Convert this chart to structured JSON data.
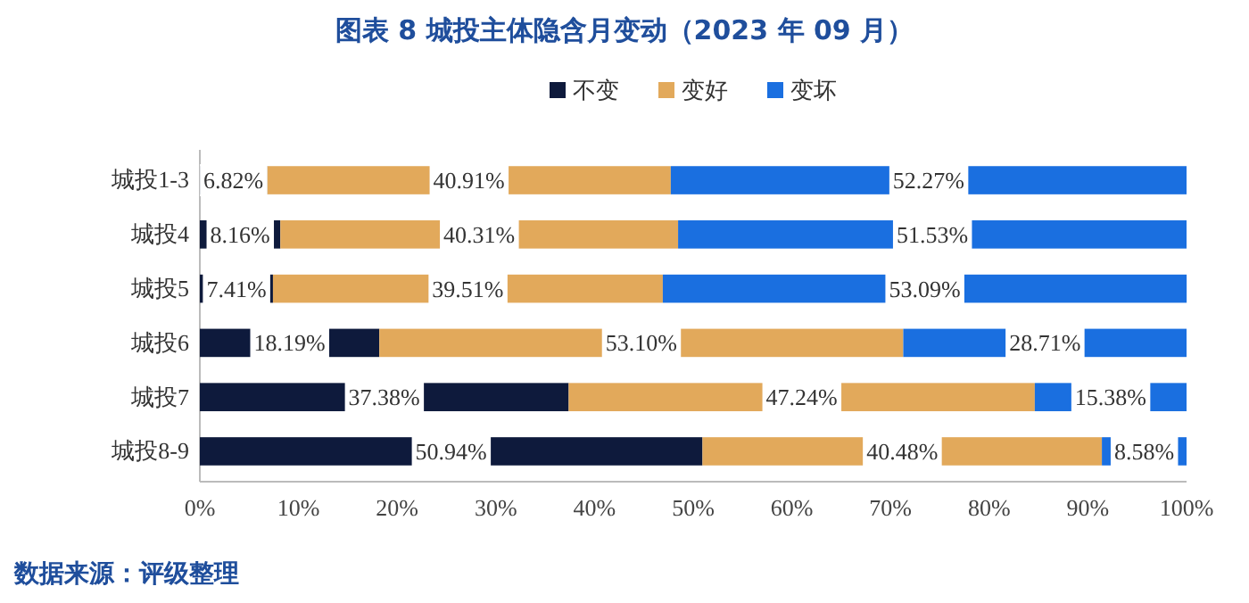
{
  "chart_data": {
    "type": "bar",
    "orientation": "horizontal",
    "stacked": true,
    "title": "图表 8 城投主体隐含月变动（2023 年 09 月）",
    "categories": [
      "城投1-3",
      "城投4",
      "城投5",
      "城投6",
      "城投7",
      "城投8-9"
    ],
    "series": [
      {
        "name": "不变",
        "color": "#0e1a3c",
        "values": [
          6.82,
          8.16,
          7.41,
          18.19,
          37.38,
          50.94
        ],
        "value_labels": [
          "6.82%",
          "8.16%",
          "7.41%",
          "18.19%",
          "37.38%",
          "50.94%"
        ]
      },
      {
        "name": "变好",
        "color": "#e2a95b",
        "values": [
          40.91,
          40.31,
          39.51,
          53.1,
          47.24,
          40.48
        ],
        "value_labels": [
          "40.91%",
          "40.31%",
          "39.51%",
          "53.10%",
          "47.24%",
          "40.48%"
        ]
      },
      {
        "name": "变坏",
        "color": "#1a6fe0",
        "values": [
          52.27,
          51.53,
          53.09,
          28.71,
          15.38,
          8.58
        ],
        "value_labels": [
          "52.27%",
          "51.53%",
          "53.09%",
          "28.71%",
          "15.38%",
          "8.58%"
        ]
      }
    ],
    "xlim": [
      0,
      100
    ],
    "xticks": [
      {
        "value": 0,
        "label": "0%"
      },
      {
        "value": 10,
        "label": "10%"
      },
      {
        "value": 20,
        "label": "20%"
      },
      {
        "value": 30,
        "label": "30%"
      },
      {
        "value": 40,
        "label": "40%"
      },
      {
        "value": 50,
        "label": "50%"
      },
      {
        "value": 60,
        "label": "60%"
      },
      {
        "value": 70,
        "label": "70%"
      },
      {
        "value": 80,
        "label": "80%"
      },
      {
        "value": 90,
        "label": "90%"
      },
      {
        "value": 100,
        "label": "100%"
      }
    ],
    "legend": "top",
    "grid": false,
    "annotations": [
      "数据来源：评级整理"
    ]
  }
}
